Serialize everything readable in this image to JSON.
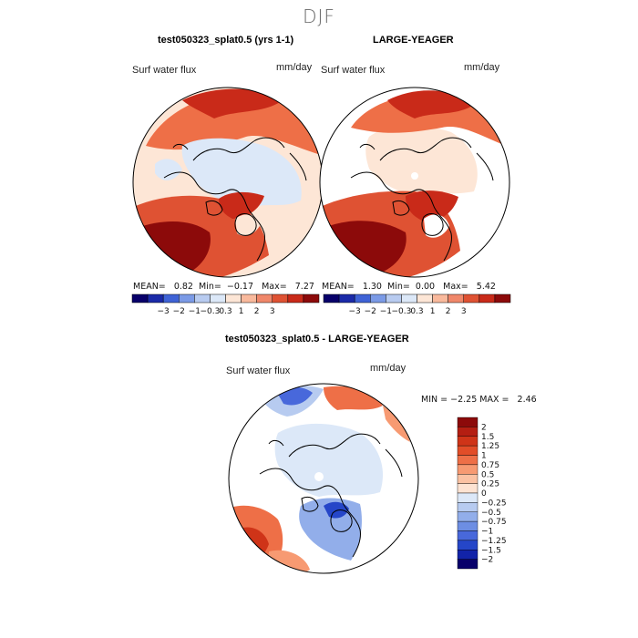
{
  "season": "DJF",
  "panels": [
    {
      "id": "model",
      "title": "test050323_splat0.5 (yrs 1-1)",
      "variable": "Surf water flux",
      "units": "mm/day",
      "stats": {
        "mean_label": "MEAN=",
        "mean": "0.82",
        "min_label": "Min=",
        "min": "−0.17",
        "max_label": "Max=",
        "max": "7.27"
      }
    },
    {
      "id": "obs",
      "title": "LARGE-YEAGER",
      "variable": "Surf water flux",
      "units": "mm/day",
      "stats": {
        "mean_label": "MEAN=",
        "mean": "1.30",
        "min_label": "Min=",
        "min": "0.00",
        "max_label": "Max=",
        "max": "5.42"
      }
    },
    {
      "id": "diff",
      "title": "test050323_splat0.5 - LARGE-YEAGER",
      "variable": "Surf water flux",
      "units": "mm/day",
      "stats": {
        "min_label": "MIN =",
        "min": "−2.25",
        "max_label": "MAX =",
        "max": "2.46"
      }
    }
  ],
  "chart_data": [
    {
      "type": "heatmap",
      "projection": "north-polar-stereographic",
      "title": "test050323_splat0.5 (yrs 1-1)",
      "variable": "Surf water flux",
      "units": "mm/day",
      "colorbar": {
        "tick_labels": [
          "−3",
          "−2",
          "−1",
          "−0.3",
          "0.3",
          "1",
          "2",
          "3"
        ],
        "colors": [
          "#08006a",
          "#1a2aa8",
          "#3f63d6",
          "#7b9ae6",
          "#b8cbf0",
          "#dce8f8",
          "#fde6d6",
          "#f9b99c",
          "#f0876a",
          "#df5233",
          "#c92a19",
          "#8c0a0a"
        ]
      }
    },
    {
      "type": "heatmap",
      "projection": "north-polar-stereographic",
      "title": "LARGE-YEAGER",
      "variable": "Surf water flux",
      "units": "mm/day",
      "colorbar": {
        "tick_labels": [
          "−3",
          "−2",
          "−1",
          "−0.3",
          "0.3",
          "1",
          "2",
          "3"
        ],
        "colors": [
          "#08006a",
          "#1a2aa8",
          "#3f63d6",
          "#7b9ae6",
          "#b8cbf0",
          "#dce8f8",
          "#fde6d6",
          "#f9b99c",
          "#f0876a",
          "#df5233",
          "#c92a19",
          "#8c0a0a"
        ]
      }
    },
    {
      "type": "heatmap",
      "projection": "north-polar-stereographic",
      "title": "test050323_splat0.5 - LARGE-YEAGER",
      "variable": "Surf water flux",
      "units": "mm/day",
      "colorbar": {
        "tick_labels": [
          "2",
          "1.5",
          "1.25",
          "1",
          "0.75",
          "0.5",
          "0.25",
          "0",
          "−0.25",
          "−0.5",
          "−0.75",
          "−1",
          "−1.25",
          "−1.5",
          "−2"
        ],
        "colors": [
          "#8c0a0a",
          "#b41e12",
          "#cf3418",
          "#e24d28",
          "#ee6f47",
          "#f79a72",
          "#fbc2a3",
          "#fde3d2",
          "#dce8f8",
          "#b7cbf0",
          "#92aeea",
          "#6d8ee3",
          "#4868db",
          "#2546c8",
          "#1223a8",
          "#08006a"
        ]
      }
    }
  ]
}
